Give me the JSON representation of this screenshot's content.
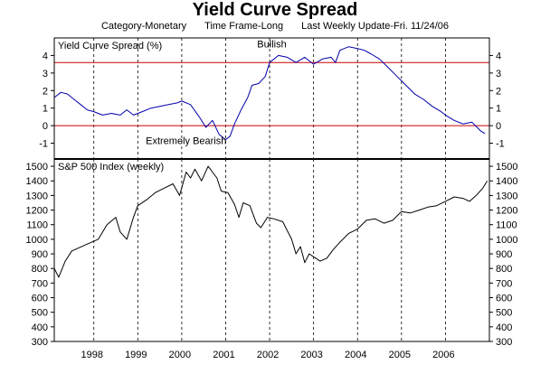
{
  "header": {
    "title": "Yield Curve Spread",
    "category": "Category-Monetary",
    "timeframe": "Time Frame-Long",
    "last_update": "Last Weekly Update-Fri. 11/24/06"
  },
  "chart_data": [
    {
      "type": "line",
      "title": "Yield Curve Spread (%)",
      "ylim": [
        -1.9,
        5.0
      ],
      "yticks": [
        -1,
        0,
        1,
        2,
        3,
        4
      ],
      "xlim": [
        1997.1,
        2007.0
      ],
      "xticks_years": [
        1998,
        1999,
        2000,
        2001,
        2002,
        2003,
        2004,
        2005,
        2006
      ],
      "grid": "vertical dashed",
      "reference_lines": [
        {
          "value": 3.6,
          "color": "#cc0000"
        },
        {
          "value": 0.0,
          "color": "#cc0000"
        }
      ],
      "annotations": [
        {
          "text": "Bullish",
          "x": 2002.05,
          "y": 4.45
        },
        {
          "text": "Extremely Bearish",
          "x": 2000.1,
          "y": -1.05
        }
      ],
      "line_color": "#0000aa",
      "series": [
        {
          "x": [
            1997.1,
            1997.25,
            1997.4,
            1997.55,
            1997.7,
            1997.85,
            1998.0,
            1998.2,
            1998.4,
            1998.6,
            1998.75,
            1998.9,
            1999.1,
            1999.3,
            1999.5,
            1999.7,
            1999.9,
            2000.0,
            2000.2,
            2000.4,
            2000.55,
            2000.7,
            2000.85,
            2001.0,
            2001.1,
            2001.2,
            2001.35,
            2001.5,
            2001.6,
            2001.75,
            2001.9,
            2002.0,
            2002.2,
            2002.4,
            2002.6,
            2002.8,
            2003.0,
            2003.2,
            2003.4,
            2003.5,
            2003.6,
            2003.8,
            2004.0,
            2004.15,
            2004.3,
            2004.5,
            2004.7,
            2004.9,
            2005.1,
            2005.3,
            2005.5,
            2005.7,
            2005.9,
            2006.0,
            2006.2,
            2006.4,
            2006.6,
            2006.8,
            2006.9
          ],
          "values": [
            1.6,
            1.9,
            1.8,
            1.5,
            1.2,
            0.9,
            0.8,
            0.6,
            0.7,
            0.6,
            0.9,
            0.6,
            0.8,
            1.0,
            1.1,
            1.2,
            1.3,
            1.4,
            1.2,
            0.5,
            -0.1,
            0.3,
            -0.5,
            -0.8,
            -0.6,
            0.1,
            0.9,
            1.6,
            2.3,
            2.4,
            2.8,
            3.6,
            4.0,
            3.9,
            3.6,
            3.9,
            3.5,
            3.8,
            3.9,
            3.6,
            4.3,
            4.5,
            4.4,
            4.3,
            4.1,
            3.8,
            3.3,
            2.8,
            2.3,
            1.8,
            1.5,
            1.1,
            0.8,
            0.6,
            0.3,
            0.1,
            0.2,
            -0.3,
            -0.45
          ]
        }
      ]
    },
    {
      "type": "line",
      "title": "S&P 500 Index (weekly)",
      "ylim": [
        300,
        1550
      ],
      "yticks": [
        300,
        400,
        500,
        600,
        700,
        800,
        900,
        1000,
        1100,
        1200,
        1300,
        1400,
        1500
      ],
      "xlim": [
        1997.1,
        2007.0
      ],
      "xticks_years": [
        1998,
        1999,
        2000,
        2001,
        2002,
        2003,
        2004,
        2005,
        2006
      ],
      "grid": "vertical dashed",
      "line_color": "#000000",
      "series": [
        {
          "x": [
            1997.1,
            1997.2,
            1997.35,
            1997.5,
            1997.65,
            1997.8,
            1997.95,
            1998.1,
            1998.3,
            1998.5,
            1998.6,
            1998.75,
            1998.9,
            1999.0,
            1999.2,
            1999.4,
            1999.6,
            1999.8,
            1999.95,
            2000.1,
            2000.2,
            2000.3,
            2000.45,
            2000.6,
            2000.7,
            2000.8,
            2000.9,
            2001.05,
            2001.2,
            2001.3,
            2001.4,
            2001.55,
            2001.7,
            2001.8,
            2001.95,
            2002.1,
            2002.3,
            2002.5,
            2002.6,
            2002.7,
            2002.8,
            2002.9,
            2003.0,
            2003.15,
            2003.3,
            2003.45,
            2003.6,
            2003.8,
            2004.0,
            2004.2,
            2004.4,
            2004.6,
            2004.8,
            2005.0,
            2005.2,
            2005.4,
            2005.6,
            2005.8,
            2006.0,
            2006.2,
            2006.4,
            2006.55,
            2006.7,
            2006.85,
            2006.95
          ],
          "values": [
            800,
            740,
            850,
            920,
            940,
            960,
            980,
            1000,
            1100,
            1150,
            1050,
            1000,
            1150,
            1230,
            1270,
            1320,
            1350,
            1380,
            1300,
            1460,
            1420,
            1480,
            1400,
            1500,
            1460,
            1420,
            1330,
            1320,
            1240,
            1150,
            1250,
            1230,
            1110,
            1080,
            1150,
            1140,
            1120,
            1000,
            900,
            950,
            840,
            900,
            880,
            850,
            870,
            930,
            980,
            1040,
            1070,
            1130,
            1140,
            1110,
            1130,
            1190,
            1180,
            1200,
            1220,
            1230,
            1260,
            1290,
            1280,
            1260,
            1300,
            1350,
            1400
          ]
        }
      ]
    }
  ]
}
